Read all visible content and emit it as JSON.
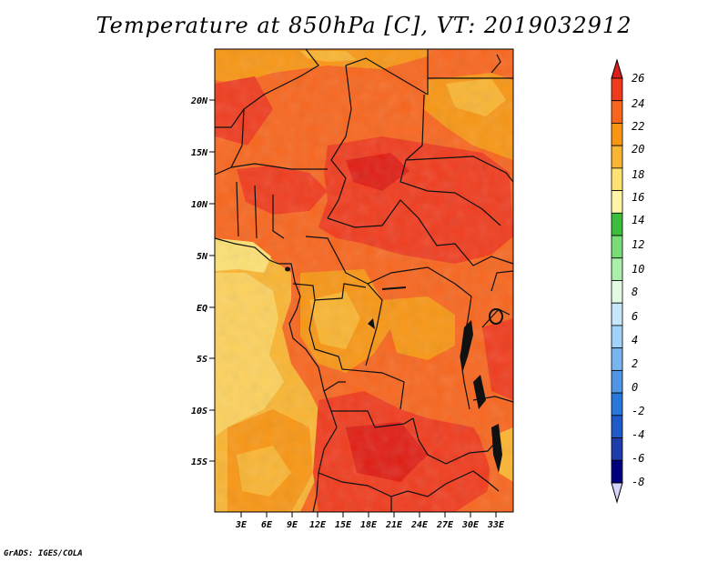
{
  "title": "Temperature at 850hPa [C], VT: 2019032912",
  "credit": "GrADS: IGES/COLA",
  "map": {
    "lat_labels": [
      "20N",
      "15N",
      "10N",
      "5N",
      "EQ",
      "5S",
      "10S",
      "15S"
    ],
    "lon_labels": [
      "3E",
      "6E",
      "9E",
      "12E",
      "15E",
      "18E",
      "21E",
      "24E",
      "27E",
      "30E",
      "33E"
    ]
  },
  "colorbar": {
    "labels": [
      "26",
      "24",
      "22",
      "20",
      "18",
      "16",
      "14",
      "12",
      "10",
      "8",
      "6",
      "4",
      "2",
      "0",
      "-2",
      "-4",
      "-6",
      "-8"
    ],
    "colors": [
      "#f03c1e",
      "#f8661e",
      "#f89614",
      "#fab532",
      "#fde173",
      "#fef5a6",
      "#3cbe3c",
      "#78dc78",
      "#aaf0aa",
      "#e1fae1",
      "#c8e6fa",
      "#a0d2fa",
      "#78b4f0",
      "#5096e6",
      "#2878dc",
      "#1e5ac8",
      "#1e3caa",
      "#00007f"
    ],
    "top_arrow_color": "#dc1e1e",
    "bottom_arrow_color": "#d4d4fa"
  }
}
